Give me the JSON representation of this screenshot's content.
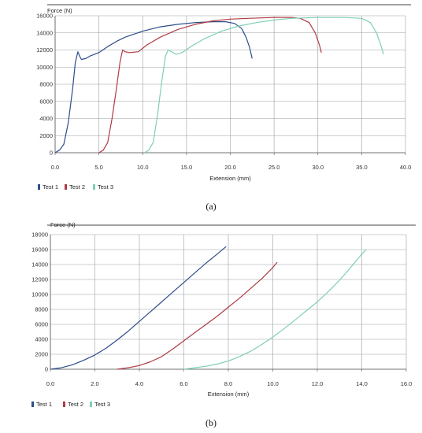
{
  "chart_data": [
    {
      "type": "line",
      "panel_label": "(a)",
      "ylabel": "Force (N)",
      "xlabel": "Extension (mm)",
      "xlim": [
        0,
        40
      ],
      "ylim": [
        0,
        16000
      ],
      "x_ticks": [
        "0.0",
        "5.0",
        "10.0",
        "15.0",
        "20.0",
        "25.0",
        "30.0",
        "35.0",
        "40.0"
      ],
      "y_ticks": [
        "0",
        "2000",
        "4000",
        "6000",
        "8000",
        "10000",
        "12000",
        "14000",
        "16000"
      ],
      "x_tick_values": [
        0,
        5,
        10,
        15,
        20,
        25,
        30,
        35,
        40
      ],
      "y_tick_values": [
        0,
        2000,
        4000,
        6000,
        8000,
        10000,
        12000,
        14000,
        16000
      ],
      "grid": true,
      "legend": "bottom-left",
      "series": [
        {
          "name": "Test 1",
          "color": "#2e4d8a",
          "points": [
            [
              0,
              0
            ],
            [
              0.5,
              300
            ],
            [
              1,
              1000
            ],
            [
              1.5,
              3500
            ],
            [
              2,
              7500
            ],
            [
              2.3,
              10500
            ],
            [
              2.6,
              11800
            ],
            [
              2.8,
              11300
            ],
            [
              3,
              10900
            ],
            [
              3.5,
              11000
            ],
            [
              4,
              11300
            ],
            [
              5,
              11700
            ],
            [
              6,
              12400
            ],
            [
              7,
              13000
            ],
            [
              8,
              13500
            ],
            [
              10,
              14200
            ],
            [
              12,
              14700
            ],
            [
              14,
              15000
            ],
            [
              16,
              15200
            ],
            [
              18,
              15300
            ],
            [
              19.5,
              15300
            ],
            [
              20.5,
              15100
            ],
            [
              21.3,
              14500
            ],
            [
              21.8,
              13500
            ],
            [
              22.2,
              12300
            ],
            [
              22.5,
              11000
            ]
          ]
        },
        {
          "name": "Test 2",
          "color": "#b03a44",
          "points": [
            [
              5,
              0
            ],
            [
              5.5,
              300
            ],
            [
              6,
              1200
            ],
            [
              6.5,
              4000
            ],
            [
              7,
              7500
            ],
            [
              7.4,
              10500
            ],
            [
              7.7,
              12000
            ],
            [
              8,
              11800
            ],
            [
              8.5,
              11700
            ],
            [
              9.5,
              11800
            ],
            [
              10.5,
              12600
            ],
            [
              12,
              13500
            ],
            [
              14,
              14400
            ],
            [
              16,
              15000
            ],
            [
              18,
              15400
            ],
            [
              20,
              15600
            ],
            [
              22,
              15700
            ],
            [
              25,
              15800
            ],
            [
              27,
              15800
            ],
            [
              28,
              15700
            ],
            [
              29,
              15200
            ],
            [
              29.7,
              14000
            ],
            [
              30.2,
              12500
            ],
            [
              30.4,
              11700
            ]
          ]
        },
        {
          "name": "Test 3",
          "color": "#7fcfb5",
          "points": [
            [
              10.2,
              0
            ],
            [
              10.7,
              300
            ],
            [
              11.2,
              1200
            ],
            [
              11.7,
              4500
            ],
            [
              12.2,
              8500
            ],
            [
              12.6,
              11300
            ],
            [
              12.9,
              12000
            ],
            [
              13.3,
              11800
            ],
            [
              13.8,
              11500
            ],
            [
              14.5,
              11700
            ],
            [
              15.5,
              12400
            ],
            [
              17,
              13300
            ],
            [
              19,
              14200
            ],
            [
              21,
              14800
            ],
            [
              23,
              15200
            ],
            [
              25,
              15500
            ],
            [
              27,
              15700
            ],
            [
              30,
              15800
            ],
            [
              33,
              15800
            ],
            [
              35,
              15700
            ],
            [
              36,
              15200
            ],
            [
              36.7,
              14000
            ],
            [
              37.2,
              12500
            ],
            [
              37.5,
              11500
            ]
          ]
        }
      ]
    },
    {
      "type": "line",
      "panel_label": "(b)",
      "ylabel": "Force (N)",
      "xlabel": "Extension (mm)",
      "xlim": [
        0,
        16
      ],
      "ylim": [
        0,
        18000
      ],
      "x_ticks": [
        "0.0",
        "2.0",
        "4.0",
        "6.0",
        "8.0",
        "10.0",
        "12.0",
        "14.0",
        "16.0"
      ],
      "y_ticks": [
        "0",
        "2000",
        "4000",
        "6000",
        "8000",
        "10000",
        "12000",
        "14000",
        "16000",
        "18000"
      ],
      "x_tick_values": [
        0,
        2,
        4,
        6,
        8,
        10,
        12,
        14,
        16
      ],
      "y_tick_values": [
        0,
        2000,
        4000,
        6000,
        8000,
        10000,
        12000,
        14000,
        16000,
        18000
      ],
      "grid": true,
      "legend": "bottom-left",
      "series": [
        {
          "name": "Test 1",
          "color": "#2e4d8a",
          "points": [
            [
              0,
              0
            ],
            [
              0.5,
              200
            ],
            [
              1,
              600
            ],
            [
              1.5,
              1200
            ],
            [
              2,
              1900
            ],
            [
              2.5,
              2800
            ],
            [
              3,
              3900
            ],
            [
              3.5,
              5100
            ],
            [
              4,
              6400
            ],
            [
              4.5,
              7700
            ],
            [
              5,
              9000
            ],
            [
              5.5,
              10300
            ],
            [
              6,
              11600
            ],
            [
              6.5,
              12900
            ],
            [
              7,
              14200
            ],
            [
              7.5,
              15400
            ],
            [
              7.9,
              16400
            ]
          ]
        },
        {
          "name": "Test 2",
          "color": "#b03a44",
          "points": [
            [
              3,
              0
            ],
            [
              3.5,
              200
            ],
            [
              4,
              500
            ],
            [
              4.5,
              1000
            ],
            [
              5,
              1700
            ],
            [
              5.5,
              2700
            ],
            [
              6,
              3800
            ],
            [
              6.5,
              4900
            ],
            [
              7,
              6000
            ],
            [
              7.5,
              7100
            ],
            [
              8,
              8300
            ],
            [
              8.5,
              9500
            ],
            [
              9,
              10800
            ],
            [
              9.5,
              12100
            ],
            [
              10,
              13600
            ],
            [
              10.2,
              14300
            ]
          ]
        },
        {
          "name": "Test 3",
          "color": "#7fcfb5",
          "points": [
            [
              6,
              0
            ],
            [
              6.5,
              200
            ],
            [
              7,
              400
            ],
            [
              7.5,
              700
            ],
            [
              8,
              1100
            ],
            [
              8.5,
              1700
            ],
            [
              9,
              2400
            ],
            [
              9.5,
              3300
            ],
            [
              10,
              4300
            ],
            [
              10.5,
              5400
            ],
            [
              11,
              6600
            ],
            [
              11.5,
              7800
            ],
            [
              12,
              9000
            ],
            [
              12.5,
              10400
            ],
            [
              13,
              11900
            ],
            [
              13.5,
              13600
            ],
            [
              14,
              15400
            ],
            [
              14.2,
              16000
            ]
          ]
        }
      ]
    }
  ]
}
